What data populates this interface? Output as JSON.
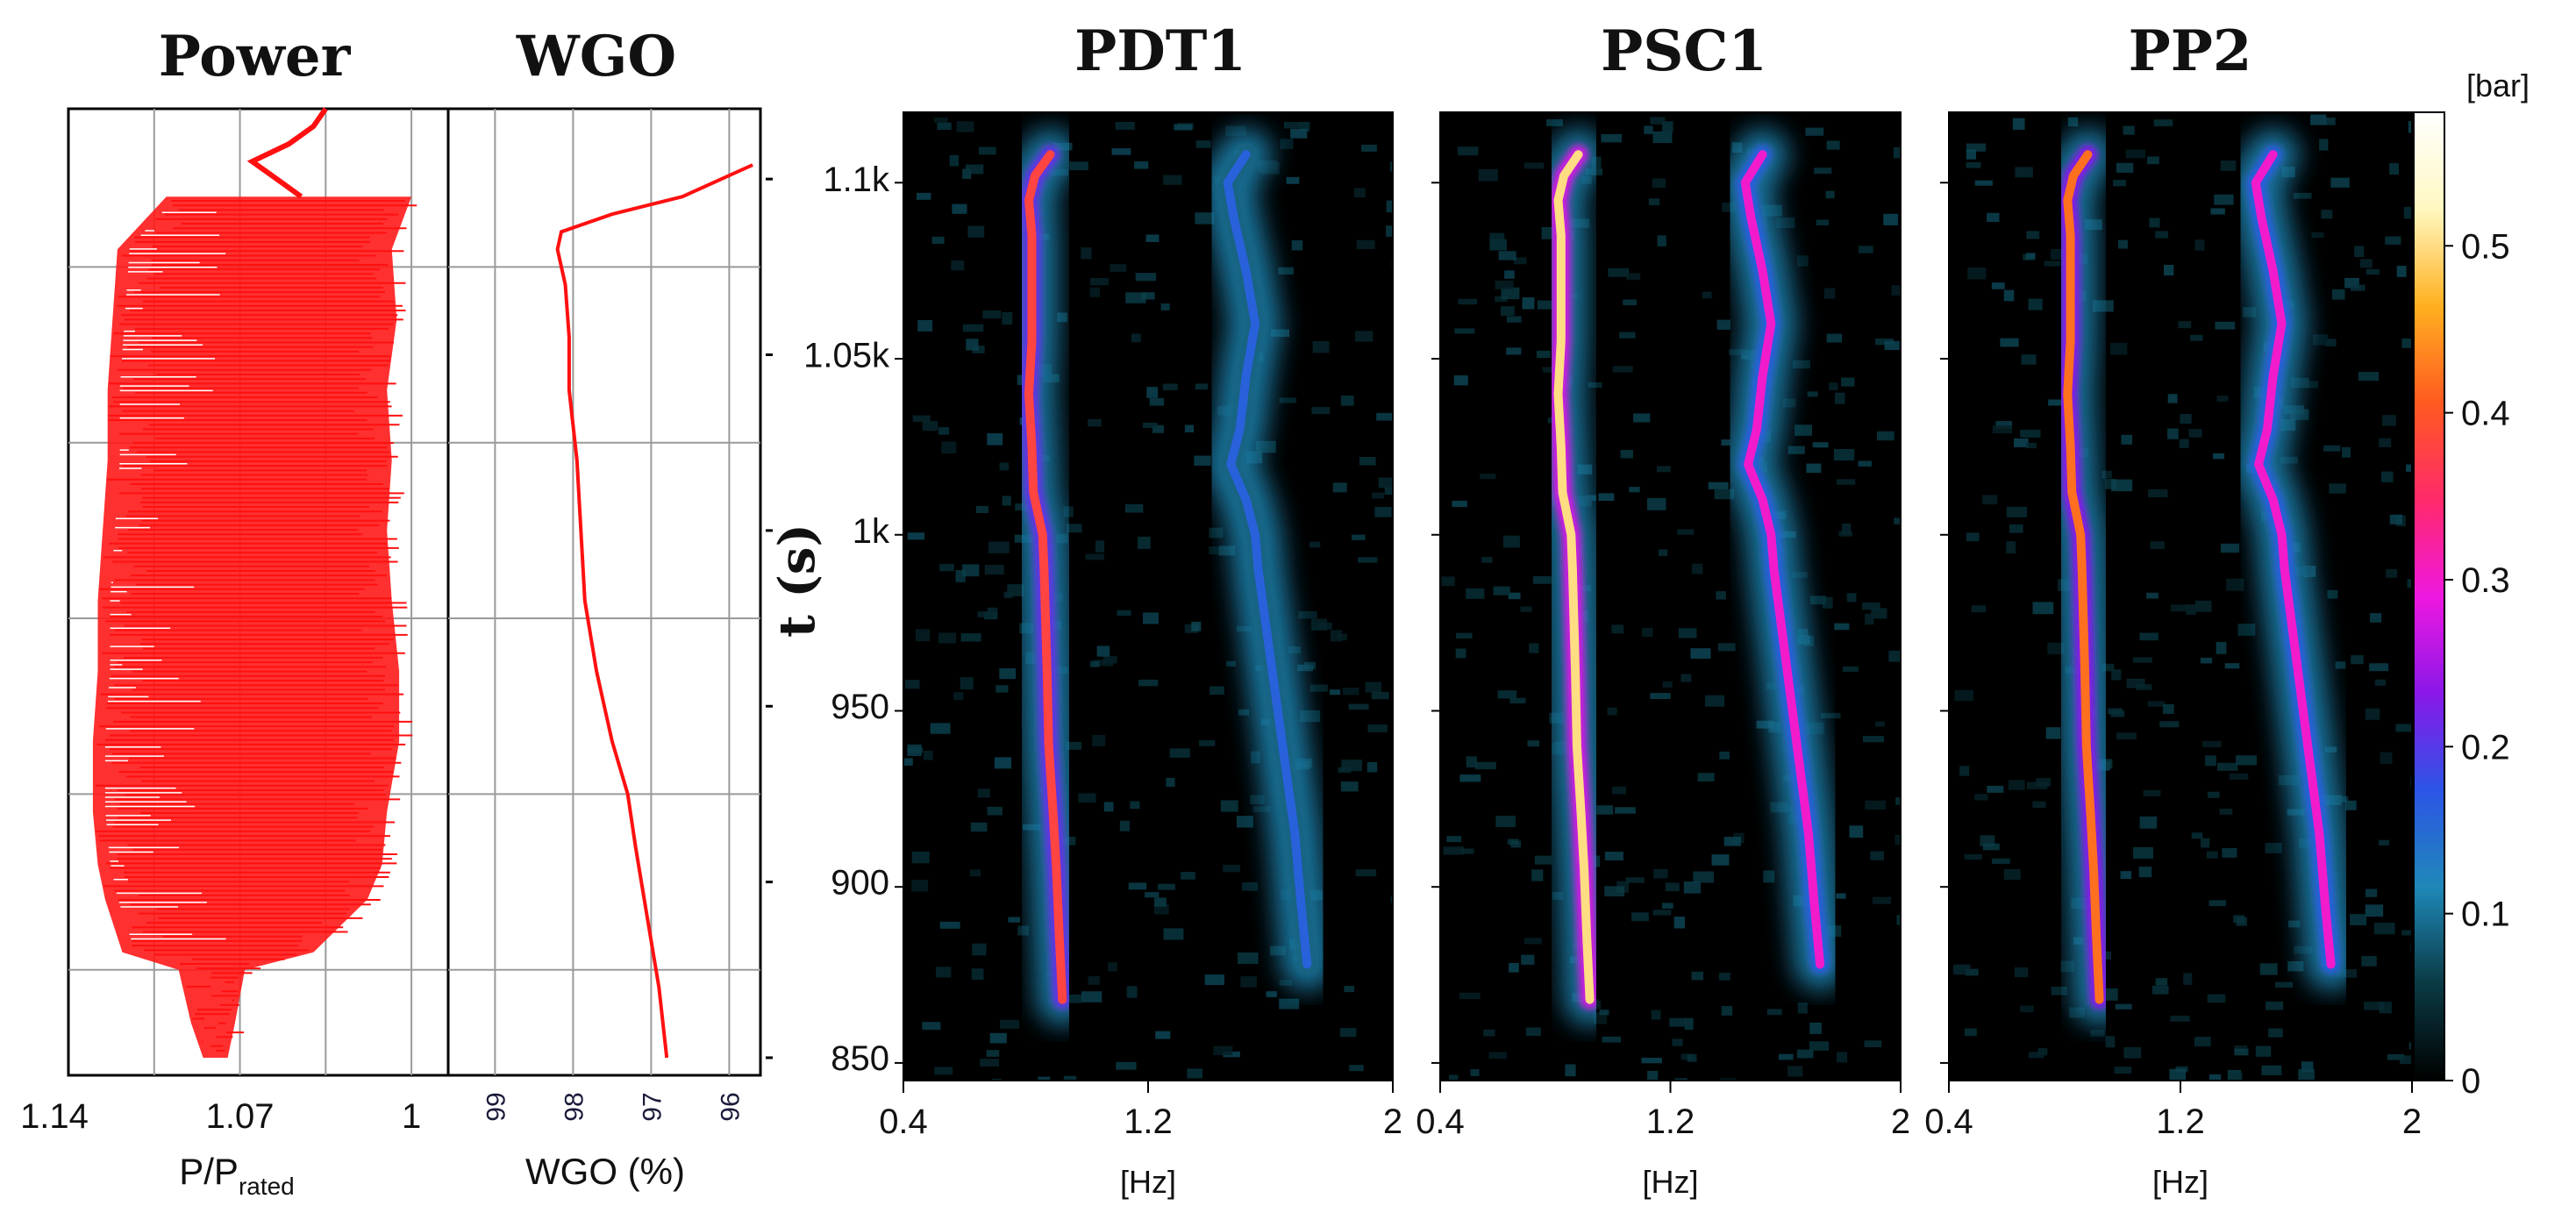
{
  "chart_data": [
    {
      "id": "power",
      "type": "line",
      "title": "Power",
      "xlabel": "P/P",
      "xlabel_sub": "rated",
      "x_reversed": true,
      "xlim": [
        1.14,
        0.985
      ],
      "xticks": [
        "1.14",
        "1.07",
        "1"
      ],
      "xtick_values": [
        1.14,
        1.07,
        1.0
      ],
      "ylim": [
        845,
        1120
      ],
      "series": [
        {
          "name": "envelope-upper",
          "y": [
            850,
            860,
            875,
            880,
            895,
            905,
            920,
            940,
            960,
            980,
            1000,
            1020,
            1040,
            1060,
            1080,
            1095
          ],
          "x": [
            1.085,
            1.09,
            1.095,
            1.118,
            1.125,
            1.128,
            1.13,
            1.13,
            1.128,
            1.128,
            1.126,
            1.124,
            1.124,
            1.122,
            1.12,
            1.1
          ]
        },
        {
          "name": "envelope-lower",
          "y": [
            850,
            860,
            875,
            880,
            895,
            905,
            920,
            940,
            960,
            980,
            1000,
            1020,
            1040,
            1060,
            1080,
            1095
          ],
          "x": [
            1.075,
            1.072,
            1.068,
            1.04,
            1.018,
            1.012,
            1.01,
            1.005,
            1.005,
            1.008,
            1.01,
            1.008,
            1.01,
            1.006,
            1.008,
            1.0
          ]
        },
        {
          "name": "tail",
          "y": [
            1095,
            1100,
            1105,
            1110,
            1115,
            1120
          ],
          "x": [
            1.045,
            1.055,
            1.065,
            1.05,
            1.04,
            1.035
          ]
        }
      ]
    },
    {
      "id": "wgo",
      "type": "line",
      "title": "WGO",
      "xlabel": "WGO (%)",
      "x_reversed": true,
      "xlim": [
        99.6,
        95.6
      ],
      "xticks": [
        "99",
        "98",
        "97",
        "96"
      ],
      "xtick_values": [
        99,
        98,
        97,
        96
      ],
      "ylim": [
        845,
        1120
      ],
      "series": [
        {
          "name": "WGO",
          "y": [
            850,
            870,
            890,
            910,
            925,
            940,
            960,
            980,
            1000,
            1020,
            1040,
            1055,
            1070,
            1080,
            1085,
            1090,
            1095,
            1102,
            1104
          ],
          "x": [
            96.8,
            96.9,
            97.05,
            97.2,
            97.3,
            97.5,
            97.7,
            97.85,
            97.9,
            97.95,
            98.05,
            98.05,
            98.1,
            98.2,
            98.15,
            97.5,
            96.6,
            95.9,
            95.7
          ]
        }
      ]
    },
    {
      "id": "PDT1",
      "type": "heatmap",
      "title": "PDT1",
      "xlabel": "[Hz]",
      "ylabel": "t (s)",
      "xlim": [
        0.4,
        2
      ],
      "xticks": [
        "0.4",
        "1.2",
        "2"
      ],
      "ylim": [
        845,
        1120
      ],
      "yticks": [
        "850",
        "900",
        "950",
        "1k",
        "1.05k",
        "1.1k"
      ],
      "ytick_values": [
        850,
        900,
        950,
        1000,
        1050,
        1100
      ],
      "ridges": [
        {
          "name": "fundamental",
          "amplitude": 0.38,
          "t": [
            868,
            885,
            905,
            920,
            940,
            960,
            990,
            1000,
            1012,
            1025,
            1040,
            1055,
            1070,
            1085,
            1095,
            1102,
            1108
          ],
          "f": [
            0.92,
            0.91,
            0.9,
            0.89,
            0.875,
            0.87,
            0.86,
            0.855,
            0.825,
            0.82,
            0.81,
            0.82,
            0.82,
            0.82,
            0.81,
            0.83,
            0.88
          ]
        },
        {
          "name": "harmonic",
          "amplitude": 0.16,
          "t": [
            878,
            895,
            915,
            940,
            965,
            990,
            1000,
            1010,
            1020,
            1030,
            1045,
            1060,
            1075,
            1090,
            1100,
            1108
          ],
          "f": [
            1.72,
            1.7,
            1.68,
            1.64,
            1.6,
            1.56,
            1.55,
            1.52,
            1.47,
            1.5,
            1.52,
            1.55,
            1.52,
            1.48,
            1.46,
            1.52
          ]
        }
      ]
    },
    {
      "id": "PSC1",
      "type": "heatmap",
      "title": "PSC1",
      "xlabel": "[Hz]",
      "xlim": [
        0.4,
        2
      ],
      "xticks": [
        "0.4",
        "1.2",
        "2"
      ],
      "ylim": [
        845,
        1120
      ],
      "ridges": [
        {
          "name": "fundamental",
          "amplitude": 0.5,
          "t": [
            868,
            885,
            905,
            920,
            940,
            960,
            990,
            1000,
            1012,
            1025,
            1040,
            1055,
            1070,
            1085,
            1095,
            1102,
            1108
          ],
          "f": [
            0.92,
            0.91,
            0.9,
            0.89,
            0.875,
            0.87,
            0.86,
            0.855,
            0.825,
            0.82,
            0.81,
            0.82,
            0.82,
            0.82,
            0.81,
            0.83,
            0.88
          ]
        },
        {
          "name": "harmonic",
          "amplitude": 0.3,
          "t": [
            878,
            895,
            915,
            940,
            965,
            990,
            1000,
            1010,
            1020,
            1030,
            1045,
            1060,
            1075,
            1090,
            1100,
            1108
          ],
          "f": [
            1.72,
            1.7,
            1.68,
            1.64,
            1.6,
            1.56,
            1.55,
            1.52,
            1.47,
            1.5,
            1.52,
            1.55,
            1.52,
            1.48,
            1.46,
            1.52
          ]
        }
      ]
    },
    {
      "id": "PP2",
      "type": "heatmap",
      "title": "PP2",
      "xlabel": "[Hz]",
      "xlim": [
        0.4,
        2
      ],
      "xticks": [
        "0.4",
        "1.2",
        "2"
      ],
      "ylim": [
        845,
        1120
      ],
      "colorbar": {
        "label": "[bar]",
        "range": [
          0,
          0.58
        ],
        "ticks": [
          "0",
          "0.1",
          "0.2",
          "0.3",
          "0.4",
          "0.5"
        ],
        "tick_values": [
          0,
          0.1,
          0.2,
          0.3,
          0.4,
          0.5
        ],
        "colors": [
          "#000000",
          "#0a3a44",
          "#1f88b8",
          "#2c55e6",
          "#8a18e8",
          "#ee18e0",
          "#ff2a6a",
          "#ff5a20",
          "#ffb020",
          "#fff8c0",
          "#ffffff"
        ]
      },
      "ridges": [
        {
          "name": "fundamental",
          "amplitude": 0.42,
          "t": [
            868,
            885,
            905,
            920,
            940,
            960,
            990,
            1000,
            1012,
            1025,
            1040,
            1055,
            1070,
            1085,
            1095,
            1102,
            1108
          ],
          "f": [
            0.92,
            0.91,
            0.9,
            0.89,
            0.875,
            0.87,
            0.86,
            0.855,
            0.825,
            0.82,
            0.81,
            0.82,
            0.82,
            0.82,
            0.81,
            0.83,
            0.88
          ]
        },
        {
          "name": "harmonic",
          "amplitude": 0.3,
          "t": [
            878,
            895,
            915,
            940,
            965,
            990,
            1000,
            1010,
            1020,
            1030,
            1045,
            1060,
            1075,
            1090,
            1100,
            1108
          ],
          "f": [
            1.72,
            1.7,
            1.68,
            1.64,
            1.6,
            1.56,
            1.55,
            1.52,
            1.47,
            1.5,
            1.52,
            1.55,
            1.52,
            1.48,
            1.46,
            1.52
          ]
        }
      ]
    }
  ]
}
